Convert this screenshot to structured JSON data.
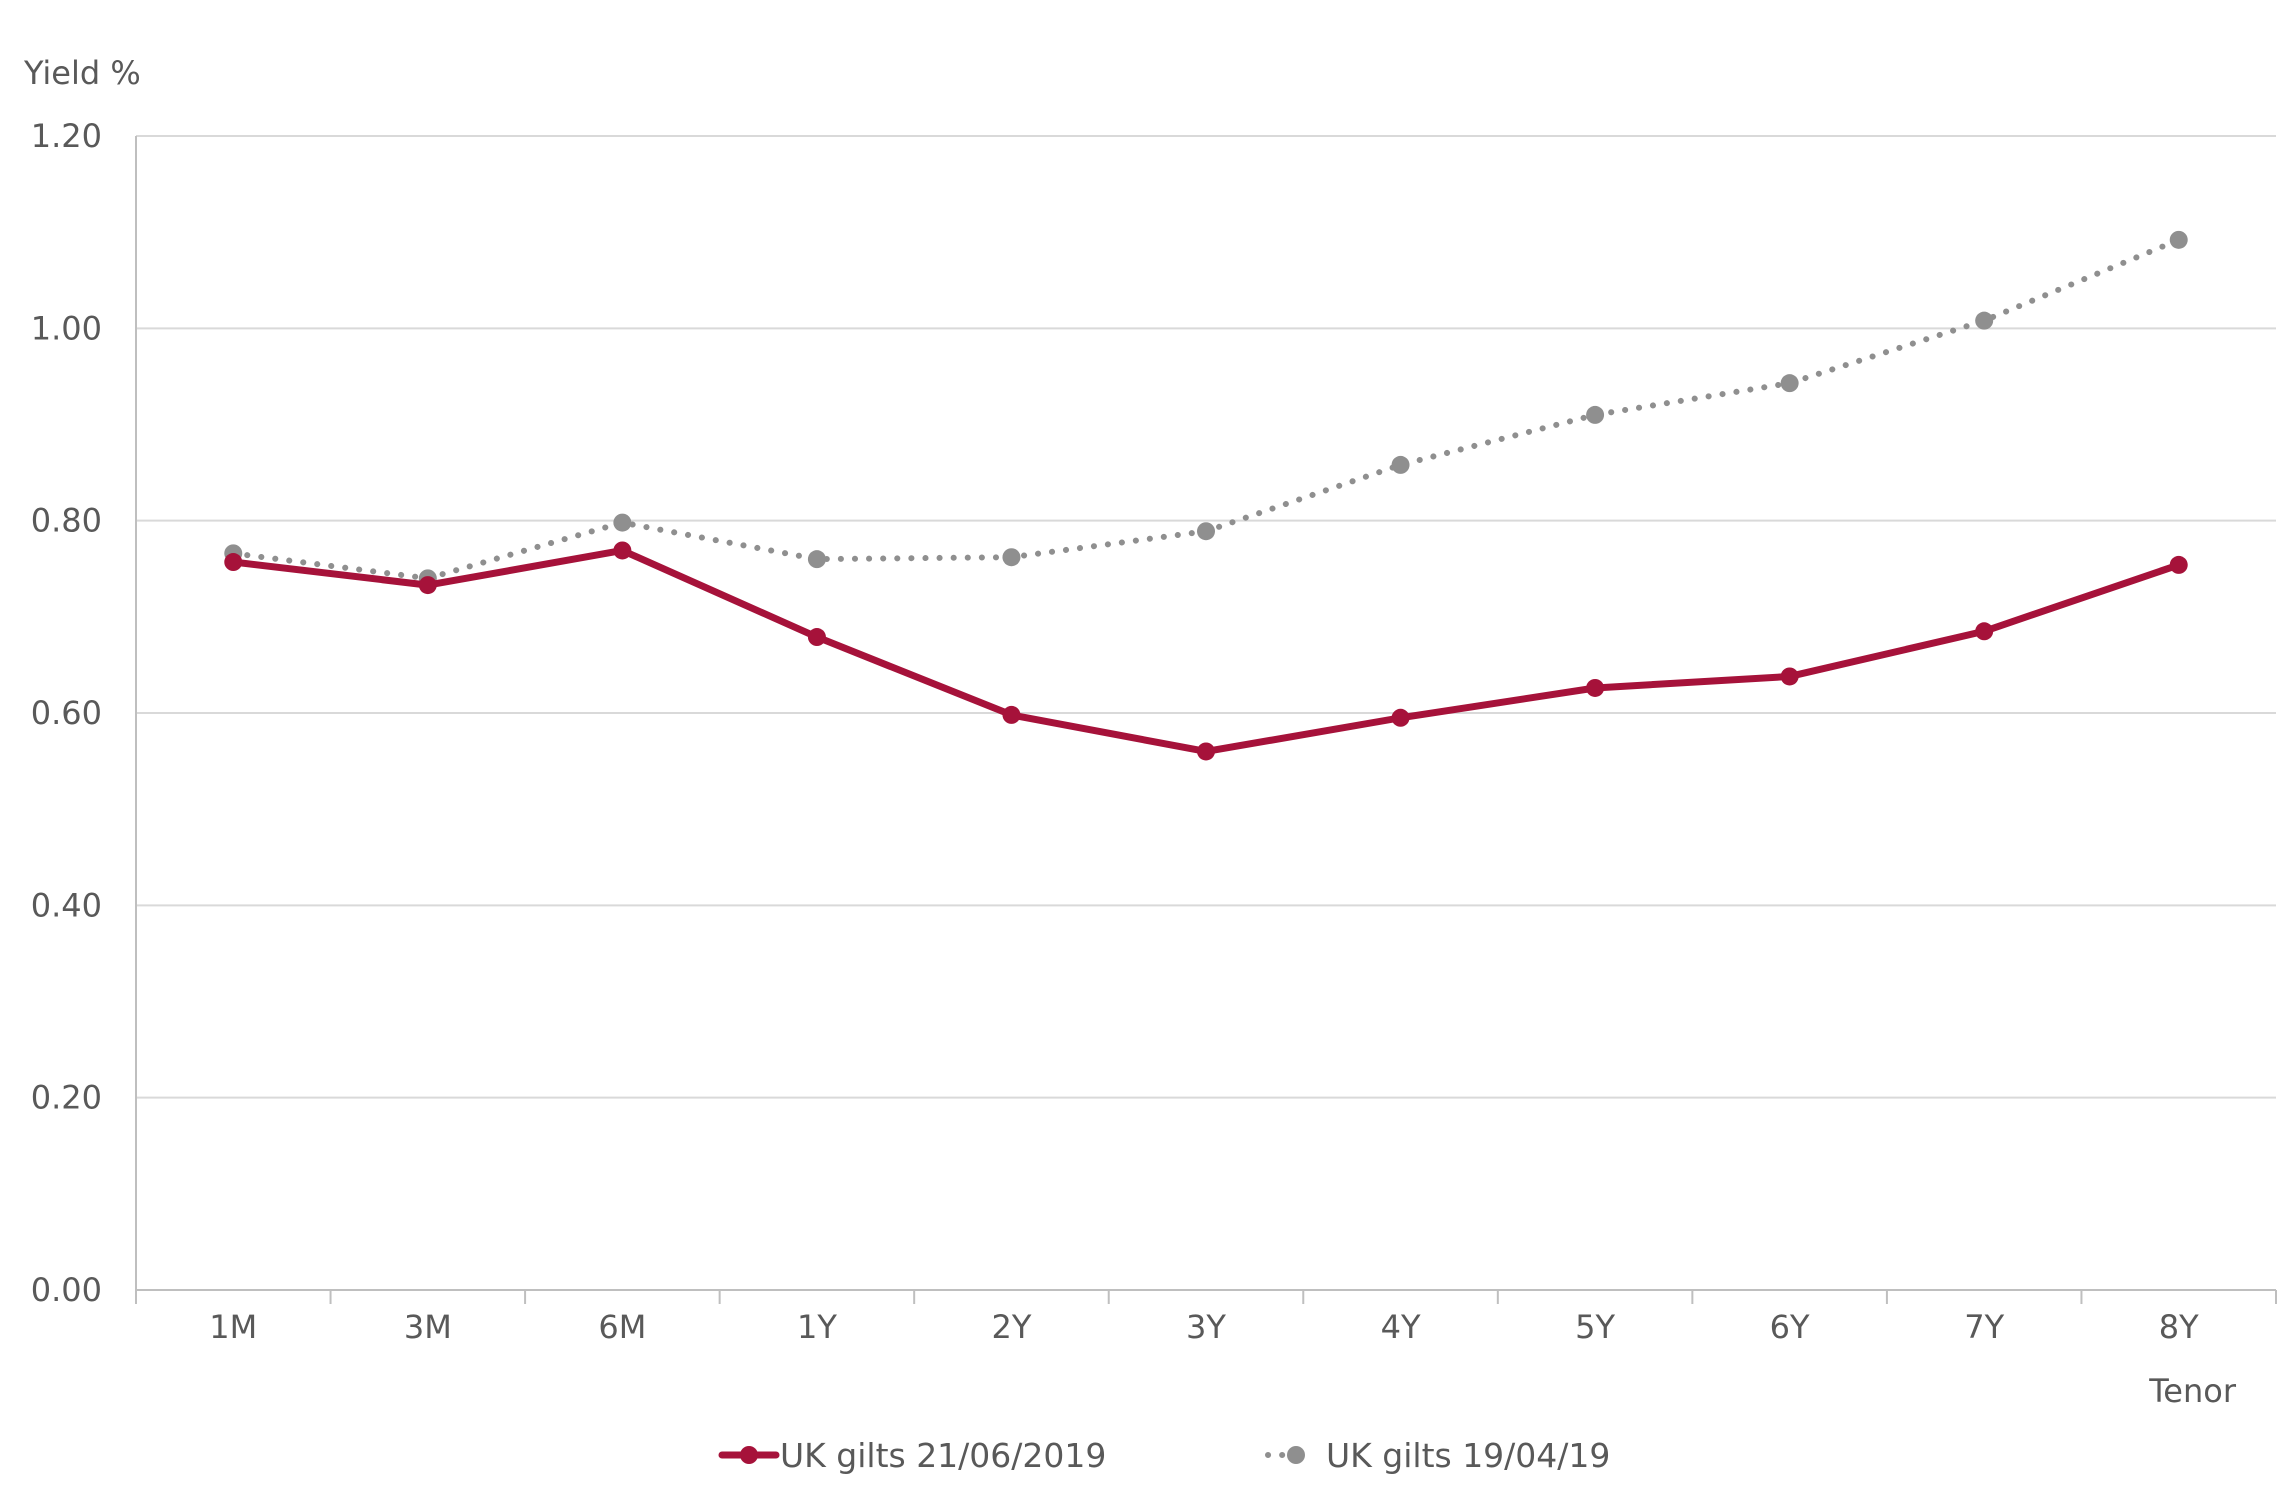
{
  "chart_data": {
    "type": "line",
    "ylabel": "Yield %",
    "xlabel": "Tenor",
    "ylim": [
      0,
      1.2
    ],
    "yticks": [
      "0.00",
      "0.20",
      "0.40",
      "0.60",
      "0.80",
      "1.00",
      "1.20"
    ],
    "ytick_values": [
      0,
      0.2,
      0.4,
      0.6,
      0.8,
      1.0,
      1.2
    ],
    "grid": "horizontal",
    "legend_position": "bottom",
    "categories": [
      "1M",
      "3M",
      "6M",
      "1Y",
      "2Y",
      "3Y",
      "4Y",
      "5Y",
      "6Y",
      "7Y",
      "8Y"
    ],
    "series": [
      {
        "name": "UK gilts 21/06/2019",
        "color": "#A6123A",
        "style": "solid",
        "values": [
          0.757,
          0.733,
          0.769,
          0.679,
          0.598,
          0.56,
          0.595,
          0.626,
          0.638,
          0.685,
          0.754
        ]
      },
      {
        "name": "UK gilts 19/04/19",
        "color": "#8F8F8F",
        "style": "dotted",
        "values": [
          0.766,
          0.74,
          0.798,
          0.76,
          0.762,
          0.789,
          0.858,
          0.91,
          0.943,
          1.008,
          1.092
        ]
      }
    ]
  }
}
